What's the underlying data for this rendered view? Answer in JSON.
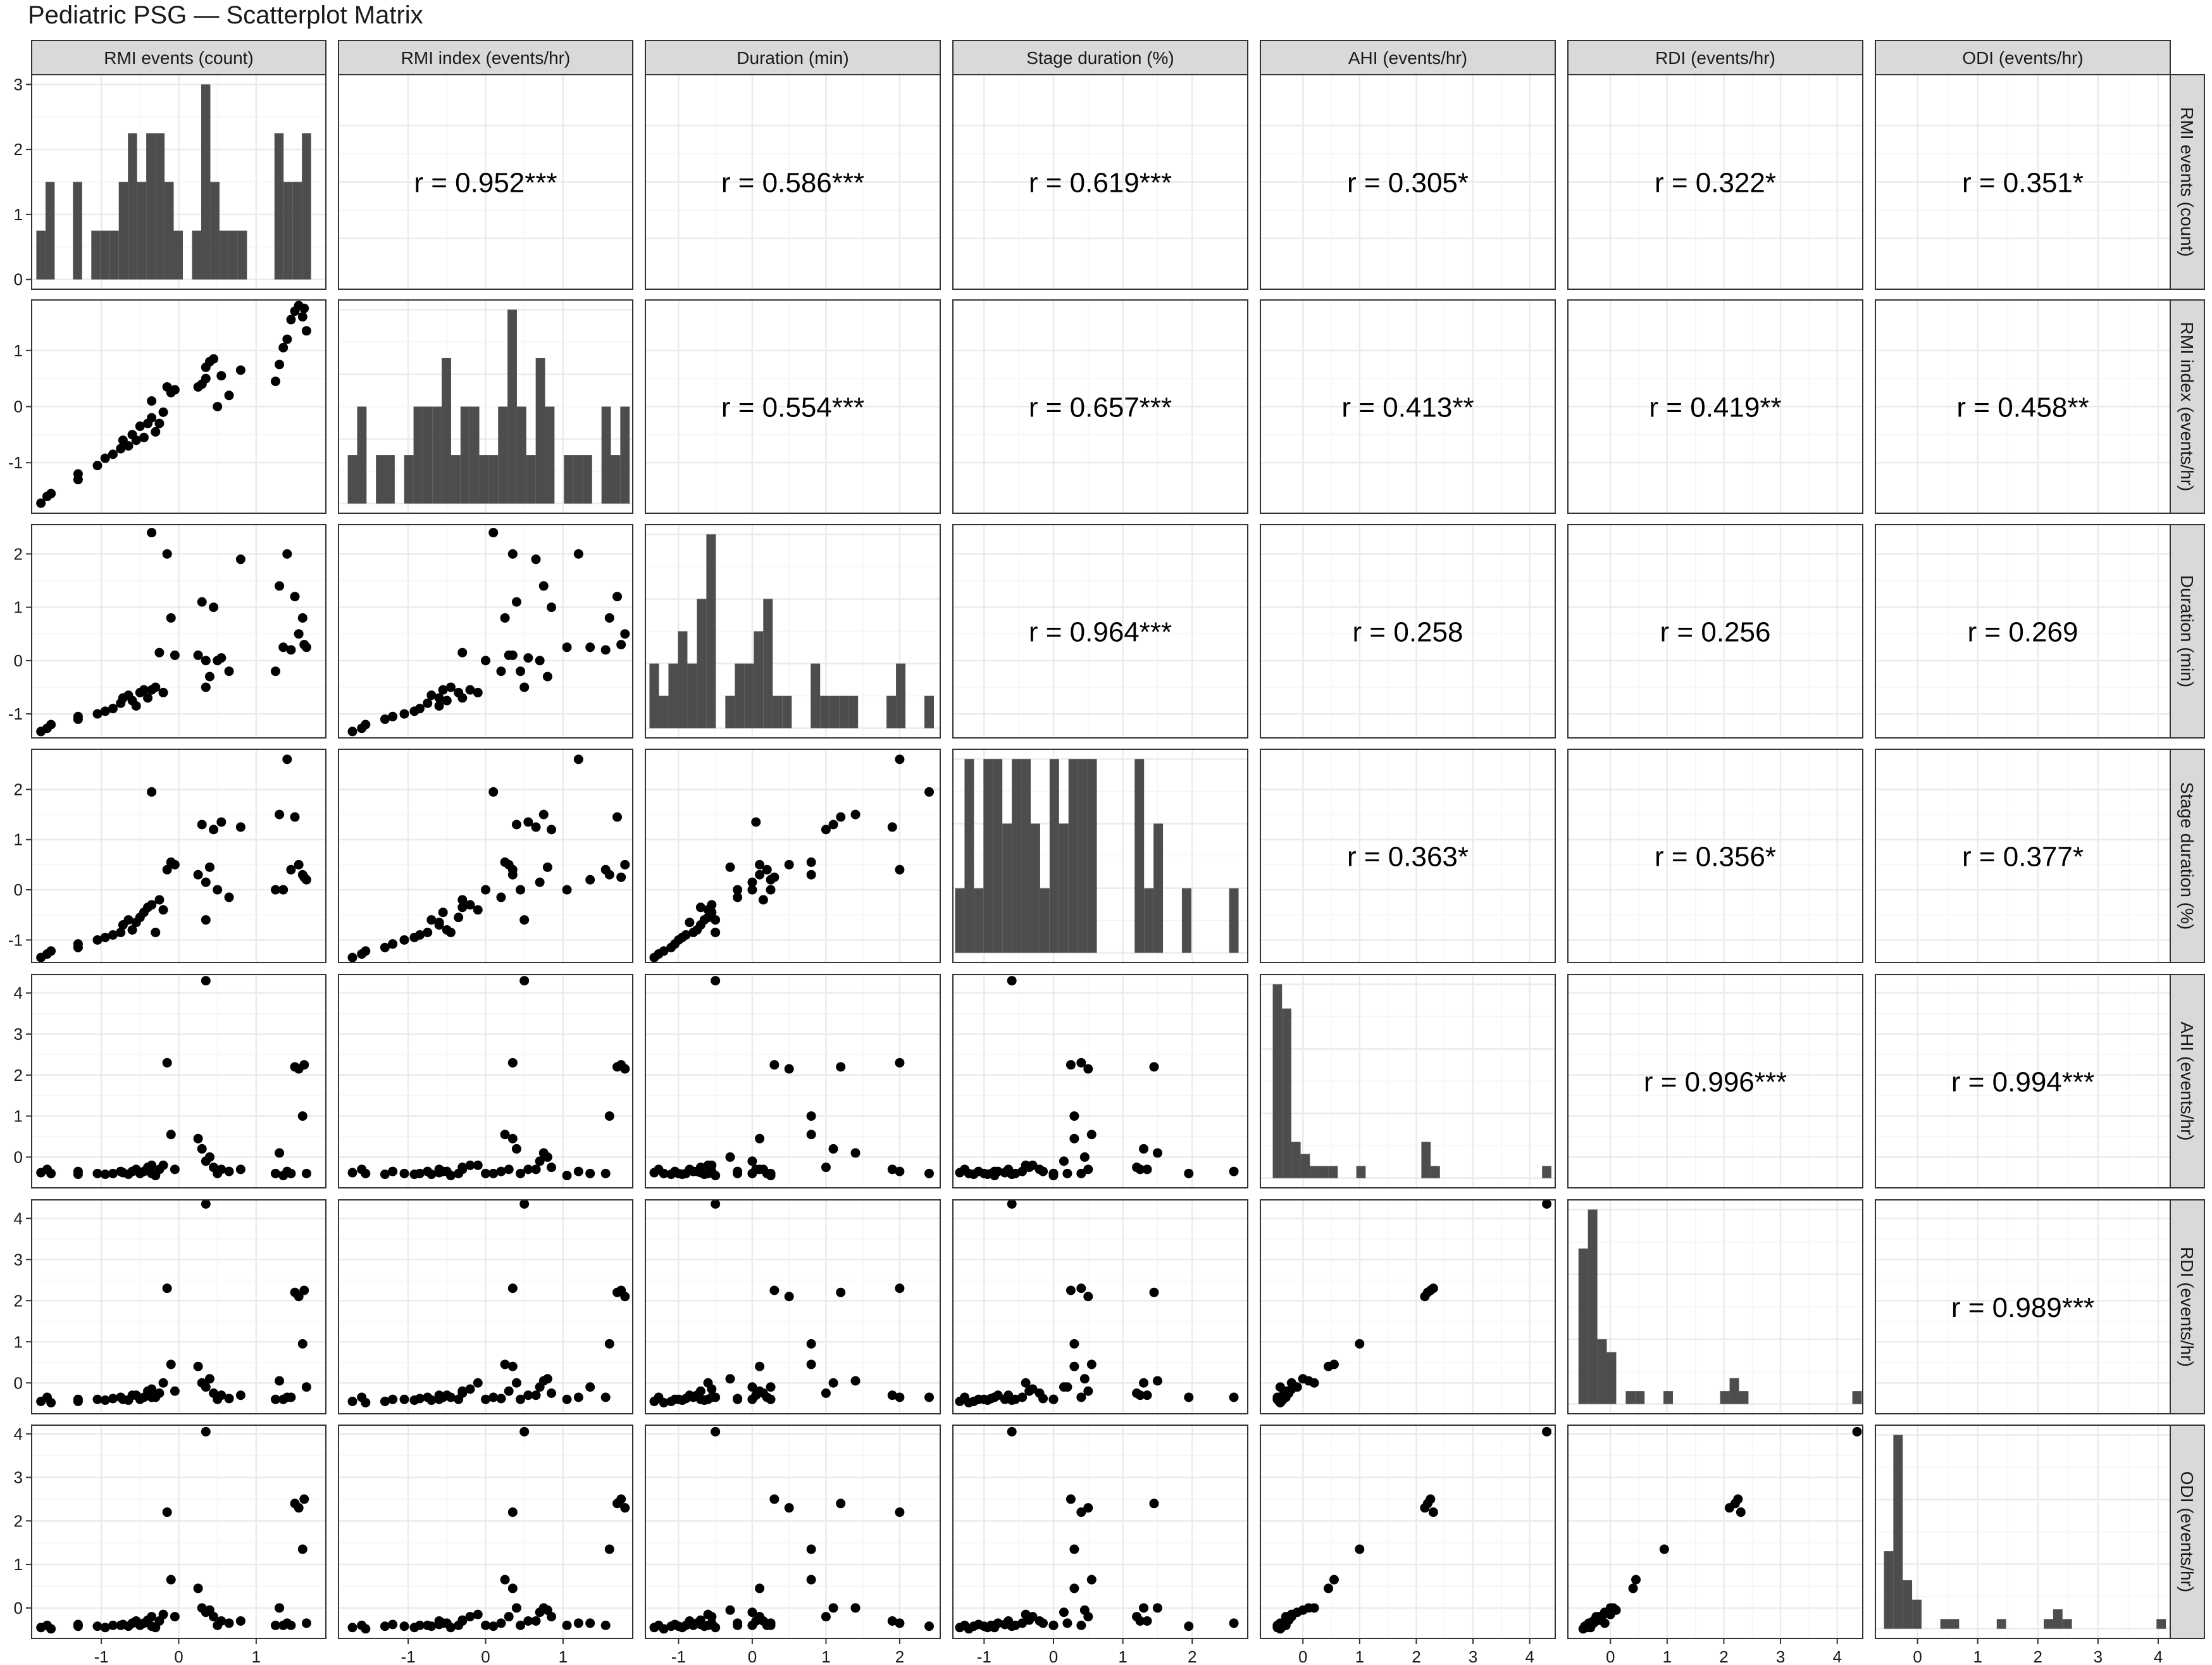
{
  "page": {
    "title": "Pediatric PSG — Scatterplot Matrix"
  },
  "colors": {
    "strip_fill": "#d9d9d9",
    "strip_border": "#333333",
    "panel_border": "#333333",
    "grid_major": "#ebebeb",
    "grid_minor": "#f5f5f5",
    "points": "#000000",
    "bars": "#4d4d4d",
    "text": "#1a1a1a"
  },
  "chart_data": {
    "type": "scatter-matrix",
    "title": "Pediatric PSG — Scatterplot Matrix",
    "variables": [
      "RMI events (count)",
      "RMI index (events/hr)",
      "Duration (min)",
      "Stage duration (%)",
      "AHI (events/hr)",
      "RDI (events/hr)",
      "ODI (events/hr)"
    ],
    "grid": true,
    "axes": [
      {
        "lim": [
          -1.9,
          1.9
        ],
        "ticks": [
          -1,
          0,
          1
        ]
      },
      {
        "lim": [
          -1.9,
          1.9
        ],
        "ticks": [
          -1,
          0,
          1
        ]
      },
      {
        "lim": [
          -1.45,
          2.55
        ],
        "ticks": [
          -1,
          0,
          1,
          2
        ]
      },
      {
        "lim": [
          -1.45,
          2.8
        ],
        "ticks": [
          -1,
          0,
          1,
          2
        ]
      },
      {
        "lim": [
          -0.75,
          4.45
        ],
        "ticks": [
          0,
          1,
          2,
          3,
          4
        ]
      },
      {
        "lim": [
          -0.75,
          4.45
        ],
        "ticks": [
          0,
          1,
          2,
          3,
          4
        ]
      },
      {
        "lim": [
          -0.7,
          4.2
        ],
        "ticks": [
          0,
          1,
          2,
          3,
          4
        ]
      }
    ],
    "count_axis": {
      "lim": [
        -0.15,
        3.15
      ],
      "ticks": [
        0,
        1,
        2,
        3
      ]
    },
    "correlations": [
      {
        "row": 0,
        "col": 1,
        "label": "r = 0.952***"
      },
      {
        "row": 0,
        "col": 2,
        "label": "r = 0.586***"
      },
      {
        "row": 0,
        "col": 3,
        "label": "r = 0.619***"
      },
      {
        "row": 0,
        "col": 4,
        "label": "r = 0.305*"
      },
      {
        "row": 0,
        "col": 5,
        "label": "r = 0.322*"
      },
      {
        "row": 0,
        "col": 6,
        "label": "r = 0.351*"
      },
      {
        "row": 1,
        "col": 2,
        "label": "r = 0.554***"
      },
      {
        "row": 1,
        "col": 3,
        "label": "r = 0.657***"
      },
      {
        "row": 1,
        "col": 4,
        "label": "r = 0.413**"
      },
      {
        "row": 1,
        "col": 5,
        "label": "r = 0.419**"
      },
      {
        "row": 1,
        "col": 6,
        "label": "r = 0.458**"
      },
      {
        "row": 2,
        "col": 3,
        "label": "r = 0.964***"
      },
      {
        "row": 2,
        "col": 4,
        "label": "r = 0.258"
      },
      {
        "row": 2,
        "col": 5,
        "label": "r = 0.256"
      },
      {
        "row": 2,
        "col": 6,
        "label": "r = 0.269"
      },
      {
        "row": 3,
        "col": 4,
        "label": "r = 0.363*"
      },
      {
        "row": 3,
        "col": 5,
        "label": "r = 0.356*"
      },
      {
        "row": 3,
        "col": 6,
        "label": "r = 0.377*"
      },
      {
        "row": 4,
        "col": 5,
        "label": "r = 0.996***"
      },
      {
        "row": 4,
        "col": 6,
        "label": "r = 0.994***"
      },
      {
        "row": 5,
        "col": 6,
        "label": "r = 0.989***"
      }
    ],
    "observations": [
      {
        "rmi_events": -1.78,
        "rmi_index": -1.72,
        "duration": -1.33,
        "stage_duration": -1.35,
        "ahi": -0.38,
        "rdi": -0.45,
        "odi": -0.45
      },
      {
        "rmi_events": -1.7,
        "rmi_index": -1.6,
        "duration": -1.27,
        "stage_duration": -1.28,
        "ahi": -0.3,
        "rdi": -0.35,
        "odi": -0.4
      },
      {
        "rmi_events": -1.65,
        "rmi_index": -1.55,
        "duration": -1.2,
        "stage_duration": -1.22,
        "ahi": -0.4,
        "rdi": -0.48,
        "odi": -0.48
      },
      {
        "rmi_events": -1.3,
        "rmi_index": -1.3,
        "duration": -1.1,
        "stage_duration": -1.15,
        "ahi": -0.42,
        "rdi": -0.45,
        "odi": -0.42
      },
      {
        "rmi_events": -1.3,
        "rmi_index": -1.2,
        "duration": -1.05,
        "stage_duration": -1.08,
        "ahi": -0.35,
        "rdi": -0.4,
        "odi": -0.38
      },
      {
        "rmi_events": -1.05,
        "rmi_index": -1.05,
        "duration": -1.0,
        "stage_duration": -1.0,
        "ahi": -0.4,
        "rdi": -0.4,
        "odi": -0.42
      },
      {
        "rmi_events": -0.95,
        "rmi_index": -0.92,
        "duration": -0.95,
        "stage_duration": -0.95,
        "ahi": -0.42,
        "rdi": -0.42,
        "odi": -0.45
      },
      {
        "rmi_events": -0.85,
        "rmi_index": -0.85,
        "duration": -0.9,
        "stage_duration": -0.9,
        "ahi": -0.4,
        "rdi": -0.38,
        "odi": -0.4
      },
      {
        "rmi_events": -0.75,
        "rmi_index": -0.75,
        "duration": -0.8,
        "stage_duration": -0.85,
        "ahi": -0.35,
        "rdi": -0.35,
        "odi": -0.4
      },
      {
        "rmi_events": -0.72,
        "rmi_index": -0.6,
        "duration": -0.7,
        "stage_duration": -0.7,
        "ahi": -0.38,
        "rdi": -0.4,
        "odi": -0.38
      },
      {
        "rmi_events": -0.65,
        "rmi_index": -0.7,
        "duration": -0.65,
        "stage_duration": -0.6,
        "ahi": -0.42,
        "rdi": -0.42,
        "odi": -0.42
      },
      {
        "rmi_events": -0.6,
        "rmi_index": -0.5,
        "duration": -0.75,
        "stage_duration": -0.8,
        "ahi": -0.35,
        "rdi": -0.3,
        "odi": -0.35
      },
      {
        "rmi_events": -0.55,
        "rmi_index": -0.6,
        "duration": -0.85,
        "stage_duration": -0.65,
        "ahi": -0.3,
        "rdi": -0.3,
        "odi": -0.3
      },
      {
        "rmi_events": -0.5,
        "rmi_index": -0.35,
        "duration": -0.6,
        "stage_duration": -0.55,
        "ahi": -0.4,
        "rdi": -0.4,
        "odi": -0.4
      },
      {
        "rmi_events": -0.45,
        "rmi_index": -0.55,
        "duration": -0.55,
        "stage_duration": -0.45,
        "ahi": -0.35,
        "rdi": -0.35,
        "odi": -0.35
      },
      {
        "rmi_events": -0.4,
        "rmi_index": -0.3,
        "duration": -0.7,
        "stage_duration": -0.35,
        "ahi": -0.25,
        "rdi": -0.2,
        "odi": -0.28
      },
      {
        "rmi_events": -0.35,
        "rmi_index": -0.2,
        "duration": -0.55,
        "stage_duration": -0.3,
        "ahi": -0.2,
        "rdi": -0.15,
        "odi": -0.2
      },
      {
        "rmi_events": -0.3,
        "rmi_index": -0.45,
        "duration": -0.5,
        "stage_duration": -0.85,
        "ahi": -0.45,
        "rdi": -0.35,
        "odi": -0.45
      },
      {
        "rmi_events": -0.25,
        "rmi_index": -0.3,
        "duration": 0.15,
        "stage_duration": -0.2,
        "ahi": -0.3,
        "rdi": -0.25,
        "odi": -0.3
      },
      {
        "rmi_events": -0.2,
        "rmi_index": -0.1,
        "duration": -0.6,
        "stage_duration": -0.4,
        "ahi": -0.2,
        "rdi": 0.0,
        "odi": -0.15
      },
      {
        "rmi_events": -0.1,
        "rmi_index": 0.25,
        "duration": 0.8,
        "stage_duration": 0.55,
        "ahi": 0.55,
        "rdi": 0.45,
        "odi": 0.65
      },
      {
        "rmi_events": -0.05,
        "rmi_index": 0.3,
        "duration": 0.1,
        "stage_duration": 0.5,
        "ahi": -0.3,
        "rdi": -0.2,
        "odi": -0.2
      },
      {
        "rmi_events": -0.15,
        "rmi_index": 0.35,
        "duration": 2.0,
        "stage_duration": 0.4,
        "ahi": 2.3,
        "rdi": 2.3,
        "odi": 2.2
      },
      {
        "rmi_events": -0.35,
        "rmi_index": 0.1,
        "duration": 2.4,
        "stage_duration": 1.95,
        "ahi": -0.4,
        "rdi": -0.35,
        "odi": -0.42
      },
      {
        "rmi_events": 0.25,
        "rmi_index": 0.35,
        "duration": 0.1,
        "stage_duration": 0.3,
        "ahi": 0.45,
        "rdi": 0.4,
        "odi": 0.45
      },
      {
        "rmi_events": 0.3,
        "rmi_index": 0.4,
        "duration": 1.1,
        "stage_duration": 1.3,
        "ahi": 0.2,
        "rdi": 0.0,
        "odi": 0.0
      },
      {
        "rmi_events": 0.35,
        "rmi_index": 0.7,
        "duration": 0.0,
        "stage_duration": 0.15,
        "ahi": -0.1,
        "rdi": -0.1,
        "odi": -0.1
      },
      {
        "rmi_events": 0.4,
        "rmi_index": 0.8,
        "duration": -0.3,
        "stage_duration": 0.45,
        "ahi": 0.0,
        "rdi": 0.1,
        "odi": -0.05
      },
      {
        "rmi_events": 0.45,
        "rmi_index": 0.85,
        "duration": 1.0,
        "stage_duration": 1.2,
        "ahi": -0.25,
        "rdi": -0.25,
        "odi": -0.2
      },
      {
        "rmi_events": 0.5,
        "rmi_index": 0.0,
        "duration": 0.0,
        "stage_duration": 0.0,
        "ahi": -0.4,
        "rdi": -0.4,
        "odi": -0.4
      },
      {
        "rmi_events": 0.35,
        "rmi_index": 0.5,
        "duration": -0.5,
        "stage_duration": -0.6,
        "ahi": 4.3,
        "rdi": 4.35,
        "odi": 4.05
      },
      {
        "rmi_events": 0.55,
        "rmi_index": 0.55,
        "duration": 0.05,
        "stage_duration": 1.35,
        "ahi": -0.3,
        "rdi": -0.3,
        "odi": -0.3
      },
      {
        "rmi_events": 0.8,
        "rmi_index": 0.65,
        "duration": 1.9,
        "stage_duration": 1.25,
        "ahi": -0.3,
        "rdi": -0.3,
        "odi": -0.3
      },
      {
        "rmi_events": 0.65,
        "rmi_index": 0.2,
        "duration": -0.2,
        "stage_duration": -0.15,
        "ahi": -0.35,
        "rdi": -0.38,
        "odi": -0.35
      },
      {
        "rmi_events": 1.25,
        "rmi_index": 0.45,
        "duration": -0.2,
        "stage_duration": 0.0,
        "ahi": -0.4,
        "rdi": -0.4,
        "odi": -0.4
      },
      {
        "rmi_events": 1.3,
        "rmi_index": 0.75,
        "duration": 1.4,
        "stage_duration": 1.5,
        "ahi": 0.1,
        "rdi": 0.05,
        "odi": 0.0
      },
      {
        "rmi_events": 1.35,
        "rmi_index": 1.05,
        "duration": 0.25,
        "stage_duration": 0.0,
        "ahi": -0.45,
        "rdi": -0.4,
        "odi": -0.4
      },
      {
        "rmi_events": 1.4,
        "rmi_index": 1.2,
        "duration": 2.0,
        "stage_duration": 2.6,
        "ahi": -0.35,
        "rdi": -0.35,
        "odi": -0.35
      },
      {
        "rmi_events": 1.45,
        "rmi_index": 1.55,
        "duration": 0.2,
        "stage_duration": 0.4,
        "ahi": -0.4,
        "rdi": -0.35,
        "odi": -0.4
      },
      {
        "rmi_events": 1.5,
        "rmi_index": 1.7,
        "duration": 1.2,
        "stage_duration": 1.45,
        "ahi": 2.2,
        "rdi": 2.2,
        "odi": 2.4
      },
      {
        "rmi_events": 1.55,
        "rmi_index": 1.8,
        "duration": 0.5,
        "stage_duration": 0.5,
        "ahi": 2.15,
        "rdi": 2.1,
        "odi": 2.3
      },
      {
        "rmi_events": 1.6,
        "rmi_index": 1.6,
        "duration": 0.8,
        "stage_duration": 0.3,
        "ahi": 1.0,
        "rdi": 0.95,
        "odi": 1.35
      },
      {
        "rmi_events": 1.62,
        "rmi_index": 1.75,
        "duration": 0.3,
        "stage_duration": 0.25,
        "ahi": 2.25,
        "rdi": 2.25,
        "odi": 2.5
      },
      {
        "rmi_events": 1.65,
        "rmi_index": 1.35,
        "duration": 0.25,
        "stage_duration": 0.2,
        "ahi": -0.4,
        "rdi": -0.1,
        "odi": -0.35
      }
    ]
  }
}
